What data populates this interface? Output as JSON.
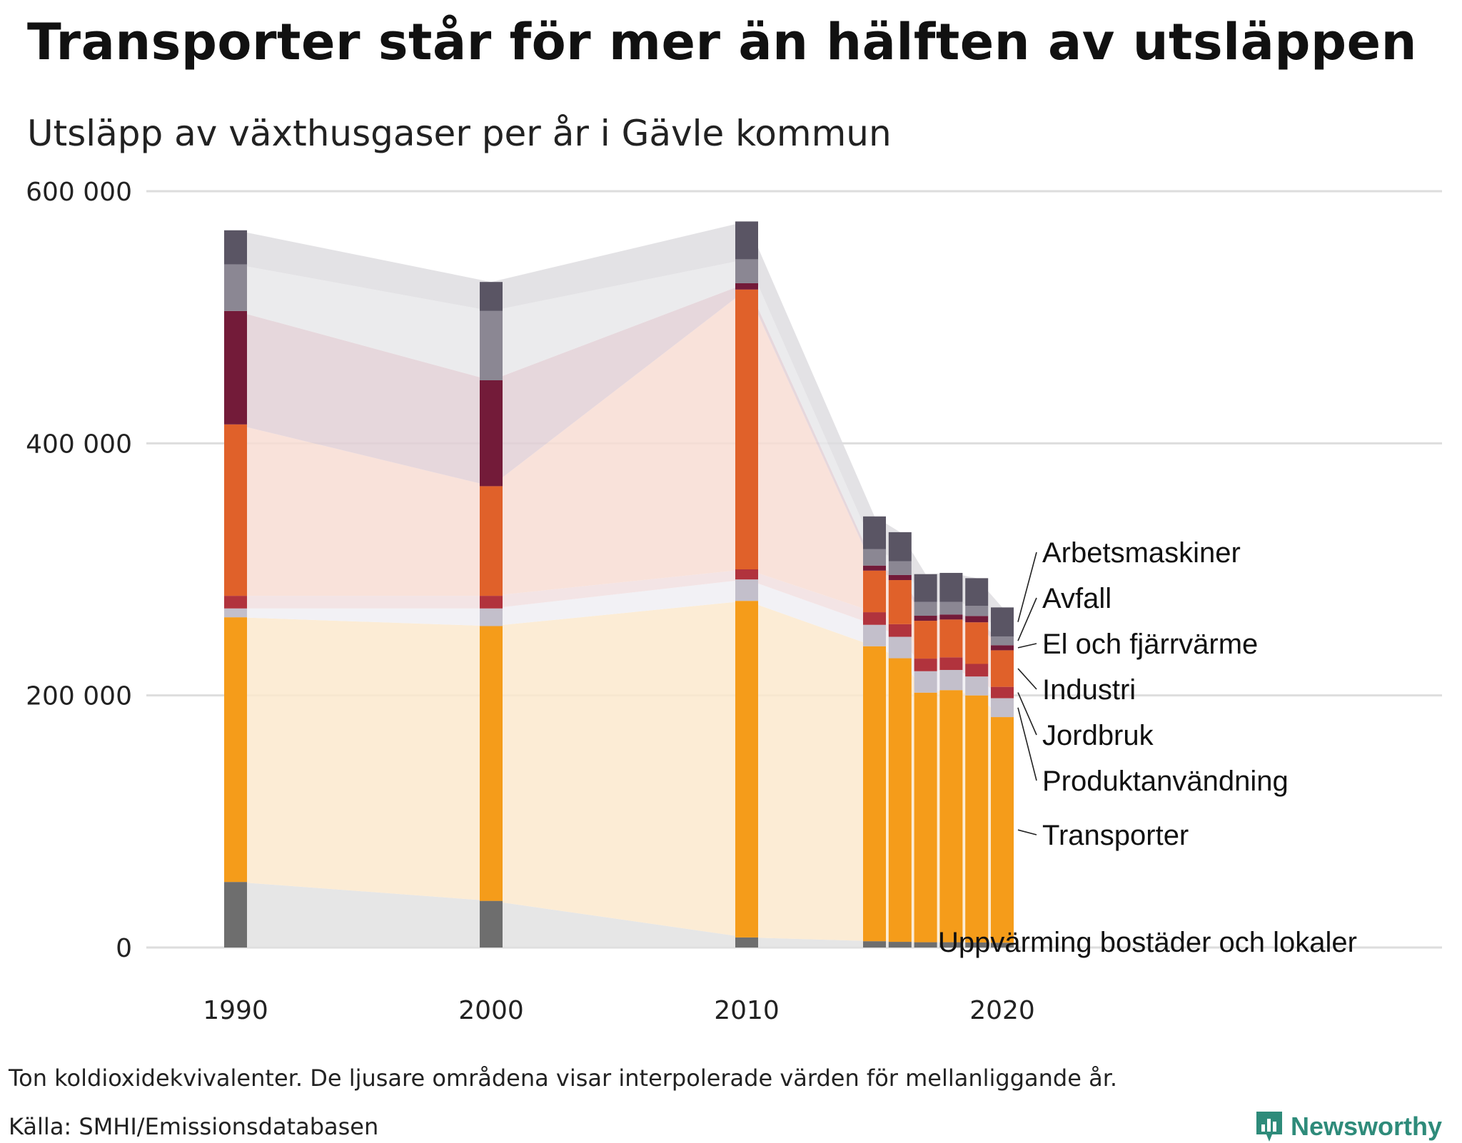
{
  "title": "Transporter står för mer än hälften av utsläppen",
  "subtitle": "Utsläpp av växthusgaser per år i Gävle kommun",
  "note": "Ton koldioxidekvivalenter. De ljusare områdena visar interpolerade värden för mellanliggande år.",
  "source": "Källa: SMHI/Emissionsdatabasen",
  "brand": "Newsworthy",
  "colors": {
    "brand": "#2e8b7a",
    "grid": "#dddddd"
  },
  "chart_data": {
    "type": "bar",
    "stacked": true,
    "ylim": [
      0,
      600000
    ],
    "yticks": [
      0,
      200000,
      400000,
      600000
    ],
    "ytick_labels": [
      "0",
      "200 000",
      "400 000",
      "600 000"
    ],
    "xticks": [
      1990,
      2000,
      2010,
      2020
    ],
    "xtick_labels": [
      "1990",
      "2000",
      "2010",
      "2020"
    ],
    "years": [
      1990,
      2000,
      2010,
      2015,
      2016,
      2017,
      2018,
      2019,
      2020
    ],
    "series": [
      {
        "name": "Uppvärming bostäder och lokaler",
        "color": "#6e6e6e",
        "area_color": "#e2e2e2",
        "values": [
          52000,
          37000,
          8000,
          5000,
          4500,
          4200,
          4200,
          4000,
          3800
        ]
      },
      {
        "name": "Transporter",
        "color": "#f59c1a",
        "area_color": "#fbe9ce",
        "values": [
          210000,
          218000,
          267000,
          234000,
          225000,
          198000,
          200000,
          196000,
          179000
        ]
      },
      {
        "name": "Produktanvändning",
        "color": "#c3bfcb",
        "area_color": "#f0eff3",
        "values": [
          7000,
          14000,
          17000,
          17000,
          17000,
          17000,
          16000,
          15000,
          15000
        ]
      },
      {
        "name": "Jordbruk",
        "color": "#b1333d",
        "area_color": "#f1dfe1",
        "values": [
          10000,
          10000,
          8000,
          10000,
          10000,
          10000,
          10000,
          10000,
          9000
        ]
      },
      {
        "name": "Industri",
        "color": "#e0612a",
        "area_color": "#f8ddd3",
        "values": [
          136000,
          87000,
          222000,
          33000,
          35000,
          30000,
          30000,
          33000,
          29000
        ]
      },
      {
        "name": "El och fjärrvärme",
        "color": "#731b39",
        "area_color": "#e2d0d6",
        "values": [
          90000,
          84000,
          5000,
          4000,
          4000,
          4000,
          4000,
          5000,
          4000
        ]
      },
      {
        "name": "Avfall",
        "color": "#8b8793",
        "area_color": "#e8e7ea",
        "values": [
          37000,
          55000,
          19000,
          13000,
          11000,
          11000,
          10000,
          8000,
          7000
        ]
      },
      {
        "name": "Arbetsmaskiner",
        "color": "#5a5564",
        "area_color": "#dedde0",
        "values": [
          27000,
          23000,
          30000,
          26000,
          23000,
          22000,
          23000,
          22000,
          23000
        ]
      }
    ],
    "legend_order": [
      "Arbetsmaskiner",
      "Avfall",
      "El och fjärrvärme",
      "Industri",
      "Jordbruk",
      "Produktanvändning",
      "Transporter",
      "Uppvärming bostäder och lokaler"
    ]
  }
}
